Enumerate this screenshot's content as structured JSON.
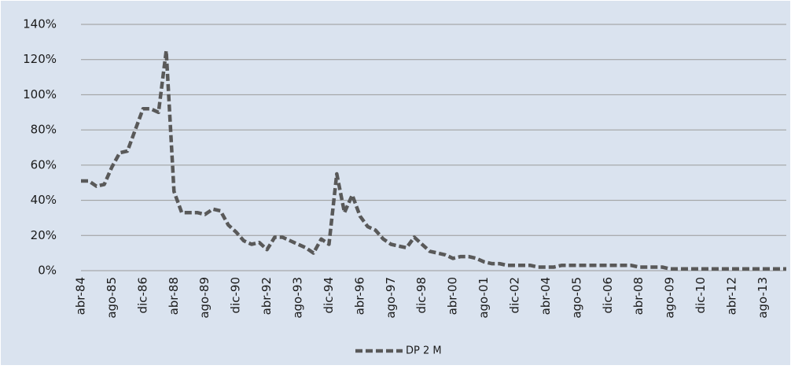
{
  "chart_data": {
    "type": "line",
    "categories": [
      "abr-84",
      null,
      null,
      null,
      "ago-85",
      null,
      null,
      null,
      "dic-86",
      null,
      null,
      null,
      "abr-88",
      null,
      null,
      null,
      "ago-89",
      null,
      null,
      null,
      "dic-90",
      null,
      null,
      null,
      "abr-92",
      null,
      null,
      null,
      "ago-93",
      null,
      null,
      null,
      "dic-94",
      null,
      null,
      null,
      "abr-96",
      null,
      null,
      null,
      "ago-97",
      null,
      null,
      null,
      "dic-98",
      null,
      null,
      null,
      "abr-00",
      null,
      null,
      null,
      "ago-01",
      null,
      null,
      null,
      "dic-02",
      null,
      null,
      null,
      "abr-04",
      null,
      null,
      null,
      "ago-05",
      null,
      null,
      null,
      "dic-06",
      null,
      null,
      null,
      "abr-08",
      null,
      null,
      null,
      "ago-09",
      null,
      null,
      null,
      "dic-10",
      null,
      null,
      null,
      "abr-12",
      null,
      null,
      null,
      "ago-13",
      null,
      null,
      null
    ],
    "series": [
      {
        "name": "DP 2 M",
        "color": "#595959",
        "values": [
          51,
          51,
          48,
          49,
          59,
          67,
          68,
          80,
          92,
          92,
          90,
          125,
          45,
          33,
          33,
          33,
          32,
          35,
          34,
          26,
          22,
          17,
          15,
          16,
          12,
          19,
          19,
          17,
          15,
          13,
          10,
          18,
          15,
          55,
          33,
          43,
          31,
          25,
          23,
          18,
          15,
          14,
          13,
          19,
          15,
          11,
          10,
          9,
          7,
          8,
          8,
          7,
          5,
          4,
          4,
          3,
          3,
          3,
          3,
          2,
          2,
          2,
          3,
          3,
          3,
          3,
          3,
          3,
          3,
          3,
          3,
          3,
          2,
          2,
          2,
          2,
          1,
          1,
          1,
          1,
          1,
          1,
          1,
          1,
          1,
          1,
          1,
          1,
          1,
          1,
          1,
          1
        ]
      }
    ],
    "ylim": [
      0,
      140
    ],
    "yticks": [
      {
        "value": 0,
        "label": "0%"
      },
      {
        "value": 20,
        "label": "20%"
      },
      {
        "value": 40,
        "label": "40%"
      },
      {
        "value": 60,
        "label": "60%"
      },
      {
        "value": 80,
        "label": "80%"
      },
      {
        "value": 100,
        "label": "100%"
      },
      {
        "value": 120,
        "label": "120%"
      },
      {
        "value": 140,
        "label": "140%"
      }
    ],
    "grid": true
  }
}
